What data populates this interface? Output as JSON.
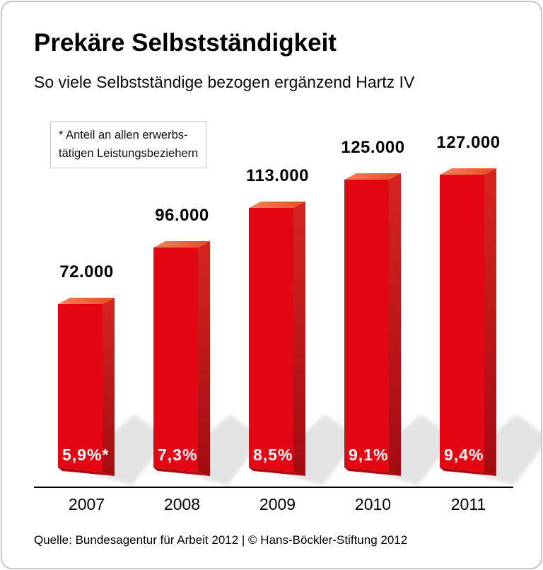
{
  "header": {
    "title": "Prekäre Selbstständigkeit",
    "subtitle": "So viele Selbstständige bezogen ergänzend Hartz IV"
  },
  "note": {
    "line1": "* Anteil an allen erwerbs-",
    "line2": "tätigen Leistungsbeziehern"
  },
  "chart_data": {
    "type": "bar",
    "title": "Prekäre Selbstständigkeit",
    "subtitle": "So viele Selbstständige bezogen ergänzend Hartz IV",
    "categories": [
      "2007",
      "2008",
      "2009",
      "2010",
      "2011"
    ],
    "values": [
      72000,
      96000,
      113000,
      125000,
      127000
    ],
    "value_labels": [
      "72.000",
      "96.000",
      "113.000",
      "125.000",
      "127.000"
    ],
    "percent_labels": [
      "5,9%*",
      "7,3%",
      "8,5%",
      "9,1%",
      "9,4%"
    ],
    "footnote": "* Anteil an allen erwerbstätigen Leistungsbeziehern",
    "xlabel": "",
    "ylabel": "",
    "legend": "none",
    "grid": false,
    "colors": {
      "bar_front": "#e30613",
      "bar_top_light": "#f0825e",
      "bar_top_dark": "#e74c24",
      "bar_side_top": "#d62520",
      "bar_side_bottom": "#a30b10",
      "bar_bottom": "#ad0a10",
      "shadow": "#e3e3e3",
      "axis": "#000000",
      "percent_text": "#ffffff"
    }
  },
  "footer": {
    "source": "Quelle: Bundesagentur für Arbeit 2012 | © Hans-Böckler-Stiftung 2012"
  }
}
